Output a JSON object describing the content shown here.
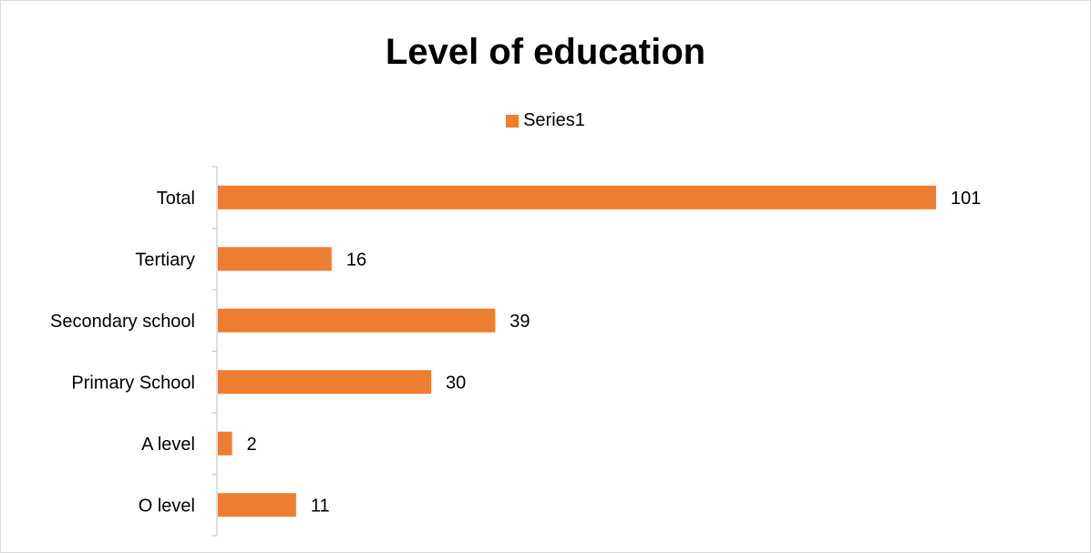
{
  "chart_data": {
    "type": "bar",
    "orientation": "horizontal",
    "title": "Level of education",
    "categories": [
      "Total",
      "Tertiary",
      "Secondary school",
      "Primary School",
      "A level",
      "O level"
    ],
    "series": [
      {
        "name": "Series1",
        "values": [
          101,
          16,
          39,
          30,
          2,
          11
        ],
        "color": "#ED7D31"
      }
    ],
    "xlim": [
      0,
      101
    ],
    "grid": false,
    "legend": {
      "position": "top",
      "label": "Series1"
    },
    "data_labels": true
  }
}
